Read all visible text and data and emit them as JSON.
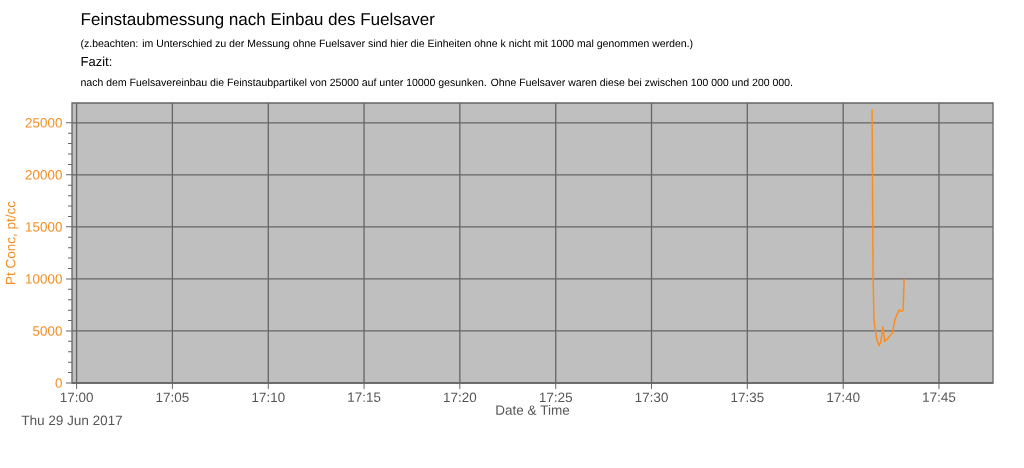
{
  "chart_data": {
    "type": "line",
    "title": "Feinstaubmessung nach Einbau des Fuelsaver",
    "subtitle": "(z.beachten: im Unterschied zu der  Messung ohne Fuelsaver sind hier die Einheiten ohne k                    nicht mit 1000 mal genommen werden.)",
    "annotations": [
      "Fazit:",
      "nach dem Fuelsavereinbau die Feinstaubpartikel von 25000 auf unter 10000 gesunken. Ohne Fuelsaver  waren diese bei  zwischen 100 000 und 200 000.",
      "Thu 29 Jun 2017"
    ],
    "xlabel": "Date & Time",
    "ylabel": "Pt Conc, pt/cc",
    "x": [
      17.6918,
      17.6927,
      17.6935,
      17.6957,
      17.6977,
      17.6993,
      17.7013,
      17.7028,
      17.7057,
      17.7095,
      17.7115,
      17.7135,
      17.7153,
      17.7178,
      17.7188,
      17.7197
    ],
    "series": [
      {
        "color": "#ff8c1a",
        "values": [
          26300,
          10200,
          6000,
          4300,
          3600,
          3900,
          5400,
          4000,
          4300,
          4800,
          6000,
          6600,
          7000,
          6900,
          7000,
          10000
        ]
      }
    ],
    "xlim": [
      16.996,
      17.797
    ],
    "ylim": [
      0,
      26900
    ],
    "xticks": [
      {
        "value": 17.0,
        "label": "17:00"
      },
      {
        "value": 17.0833,
        "label": "17:05"
      },
      {
        "value": 17.1667,
        "label": "17:10"
      },
      {
        "value": 17.25,
        "label": "17:15"
      },
      {
        "value": 17.3333,
        "label": "17:20"
      },
      {
        "value": 17.4167,
        "label": "17:25"
      },
      {
        "value": 17.5,
        "label": "17:30"
      },
      {
        "value": 17.5833,
        "label": "17:35"
      },
      {
        "value": 17.6667,
        "label": "17:40"
      },
      {
        "value": 17.75,
        "label": "17:45"
      }
    ],
    "yticks": [
      0,
      5000,
      10000,
      15000,
      20000,
      25000
    ],
    "grid": true,
    "marker": "none",
    "line_style": "solid"
  }
}
